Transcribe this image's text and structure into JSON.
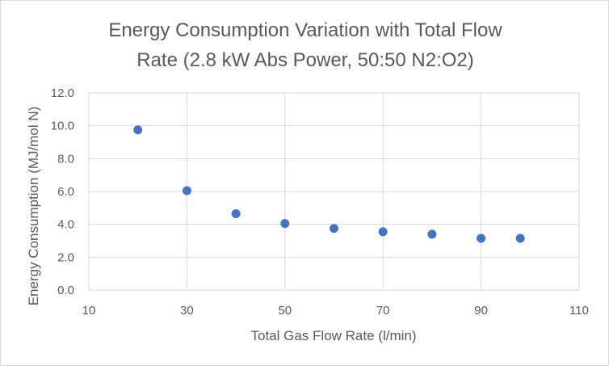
{
  "chart_data": {
    "type": "scatter",
    "title_lines": [
      "Energy Consumption  Variation with Total Flow",
      "Rate (2.8 kW Abs Power, 50:50 N2:O2)"
    ],
    "xlabel": "Total Gas Flow Rate (l/min)",
    "ylabel": "Energy Consumption (MJ/mol N)",
    "xlim": [
      10,
      110
    ],
    "ylim": [
      0,
      12
    ],
    "x_ticks": [
      10,
      30,
      50,
      70,
      90,
      110
    ],
    "y_ticks": [
      "0.0",
      "2.0",
      "4.0",
      "6.0",
      "8.0",
      "10.0",
      "12.0"
    ],
    "grid": true,
    "marker_color": "#4472c4",
    "series": [
      {
        "x": [
          20,
          30,
          40,
          50,
          60,
          70,
          80,
          90,
          98
        ],
        "y": [
          9.75,
          6.05,
          4.65,
          4.05,
          3.75,
          3.55,
          3.4,
          3.15,
          3.15
        ]
      }
    ]
  }
}
